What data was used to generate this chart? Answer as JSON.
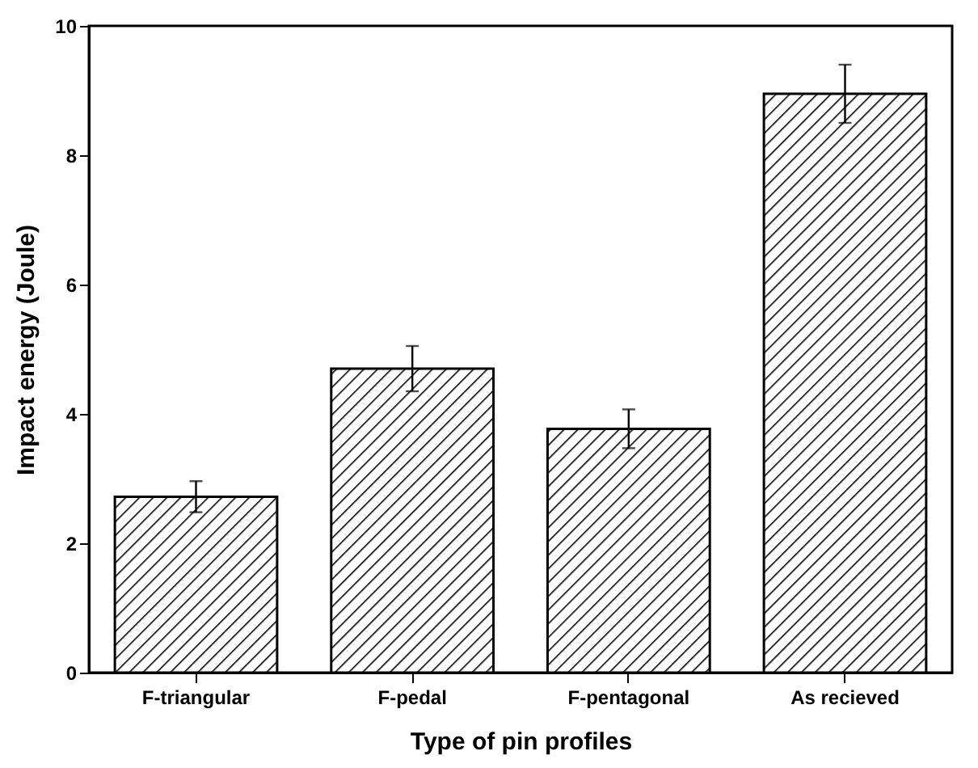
{
  "chart_data": {
    "type": "bar",
    "xlabel": "Type of pin profiles",
    "ylabel": "Impact energy (Joule)",
    "categories": [
      "F-triangular",
      "F-pedal",
      "F-pentagonal",
      "As recieved"
    ],
    "values": [
      2.72,
      4.7,
      3.77,
      8.95
    ],
    "errors": [
      0.24,
      0.35,
      0.3,
      0.45
    ],
    "color": "#000000",
    "ylim": [
      0,
      10
    ],
    "yticks": [
      0,
      2,
      4,
      6,
      8,
      10
    ],
    "grid": false
  }
}
